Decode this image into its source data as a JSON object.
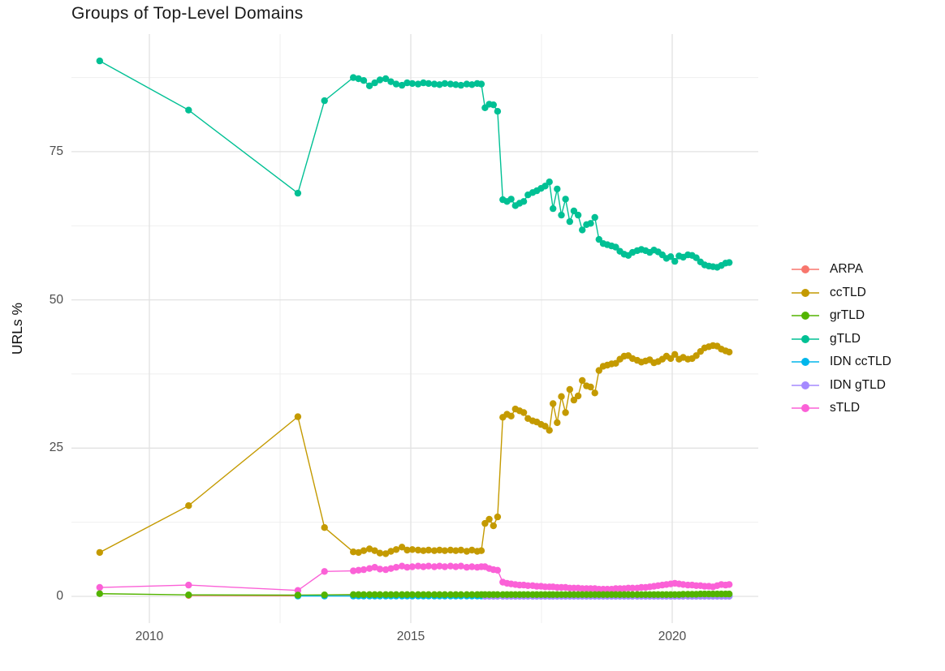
{
  "title": "Groups of Top-Level Domains",
  "y_axis": {
    "label": "URLs %",
    "tick_labels": [
      "0",
      "25",
      "50",
      "75"
    ],
    "tick_values": [
      0,
      25,
      50,
      75
    ]
  },
  "x_axis": {
    "tick_labels": [
      "2010",
      "2015",
      "2020"
    ],
    "tick_values": [
      2010,
      2015,
      2020
    ]
  },
  "legend": {
    "position": "right",
    "items": [
      {
        "label": "ARPA",
        "color": "#F8766D"
      },
      {
        "label": "ccTLD",
        "color": "#C49A00"
      },
      {
        "label": "grTLD",
        "color": "#53B400"
      },
      {
        "label": "gTLD",
        "color": "#00C094"
      },
      {
        "label": "IDN ccTLD",
        "color": "#00B6EB"
      },
      {
        "label": "IDN gTLD",
        "color": "#A58AFF"
      },
      {
        "label": "sTLD",
        "color": "#FB61D7"
      }
    ]
  },
  "chart_data": {
    "type": "line",
    "title": "Groups of Top-Level Domains",
    "xlabel": "",
    "ylabel": "URLs %",
    "xlim": [
      2008.5,
      2021.65
    ],
    "ylim": [
      -4.5,
      94.8
    ],
    "grid": true,
    "legend_position": "right",
    "x_major": [
      2010,
      2015,
      2020
    ],
    "x_minor": [
      2012.5,
      2017.5
    ],
    "y_major": [
      0,
      25,
      50,
      75
    ],
    "y_minor": [
      12.5,
      37.5,
      62.5,
      87.5
    ],
    "x": [
      2009.05,
      2010.75,
      2012.84,
      2013.35,
      2013.9,
      2014.0,
      2014.1,
      2014.21,
      2014.31,
      2014.41,
      2014.52,
      2014.62,
      2014.72,
      2014.83,
      2014.93,
      2015.03,
      2015.14,
      2015.24,
      2015.34,
      2015.45,
      2015.55,
      2015.65,
      2015.76,
      2015.86,
      2015.96,
      2016.07,
      2016.17,
      2016.27,
      2016.35,
      2016.42,
      2016.5,
      2016.58,
      2016.66,
      2016.76,
      2016.84,
      2016.92,
      2017.0,
      2017.08,
      2017.16,
      2017.24,
      2017.33,
      2017.41,
      2017.49,
      2017.57,
      2017.65,
      2017.72,
      2017.8,
      2017.88,
      2017.96,
      2018.04,
      2018.12,
      2018.2,
      2018.28,
      2018.36,
      2018.44,
      2018.52,
      2018.6,
      2018.68,
      2018.76,
      2018.84,
      2018.92,
      2019.0,
      2019.08,
      2019.16,
      2019.24,
      2019.33,
      2019.41,
      2019.49,
      2019.57,
      2019.65,
      2019.73,
      2019.81,
      2019.89,
      2019.97,
      2020.05,
      2020.13,
      2020.21,
      2020.3,
      2020.38,
      2020.46,
      2020.54,
      2020.62,
      2020.7,
      2020.78,
      2020.86,
      2020.94,
      2021.02,
      2021.09
    ],
    "series": [
      {
        "name": "ARPA",
        "color": "#F8766D",
        "values": [
          null,
          0.15,
          0.1,
          0.1,
          0.1,
          null,
          null,
          null,
          null,
          null,
          null,
          null,
          null,
          null,
          null,
          null,
          null,
          null,
          null,
          null,
          null,
          null,
          null,
          null,
          null,
          null,
          null,
          null,
          null,
          null,
          null,
          null,
          null,
          null,
          null,
          null,
          null,
          null,
          null,
          null,
          null,
          null,
          null,
          null,
          null,
          null,
          null,
          null,
          null,
          null,
          null,
          null,
          null,
          null,
          null,
          null,
          null,
          null,
          null,
          null,
          null,
          null,
          null,
          null,
          null,
          null,
          null,
          null,
          null,
          null,
          null,
          null,
          null,
          null,
          null,
          null,
          null,
          null,
          null,
          null,
          null,
          null,
          null,
          null,
          null,
          null,
          null,
          null
        ]
      },
      {
        "name": "ccTLD",
        "color": "#C49A00",
        "values": [
          7.4,
          15.3,
          30.3,
          11.6,
          7.5,
          7.4,
          7.7,
          8.0,
          7.7,
          7.3,
          7.2,
          7.6,
          7.9,
          8.3,
          7.8,
          7.9,
          7.8,
          7.7,
          7.8,
          7.7,
          7.8,
          7.7,
          7.8,
          7.7,
          7.8,
          7.6,
          7.8,
          7.6,
          7.7,
          12.3,
          13.0,
          11.9,
          13.4,
          30.2,
          30.7,
          30.4,
          31.6,
          31.3,
          31.0,
          30.0,
          29.6,
          29.4,
          29.0,
          28.7,
          28.0,
          32.5,
          29.3,
          33.7,
          31.0,
          34.9,
          33.1,
          33.8,
          36.4,
          35.5,
          35.3,
          34.3,
          38.1,
          38.8,
          39.0,
          39.2,
          39.3,
          40.0,
          40.5,
          40.6,
          40.1,
          39.8,
          39.5,
          39.7,
          39.9,
          39.4,
          39.6,
          40.0,
          40.5,
          40.1,
          40.8,
          40.0,
          40.3,
          40.0,
          40.1,
          40.6,
          41.3,
          41.9,
          42.1,
          42.3,
          42.2,
          41.7,
          41.4,
          41.2
        ]
      },
      {
        "name": "grTLD",
        "color": "#53B400",
        "values": [
          0.45,
          0.25,
          0.2,
          0.25,
          0.3,
          0.3,
          0.3,
          0.3,
          0.3,
          0.3,
          0.3,
          0.3,
          0.3,
          0.3,
          0.3,
          0.3,
          0.3,
          0.3,
          0.3,
          0.3,
          0.3,
          0.3,
          0.3,
          0.3,
          0.3,
          0.3,
          0.3,
          0.3,
          0.3,
          0.3,
          0.3,
          0.3,
          0.3,
          0.3,
          0.3,
          0.3,
          0.3,
          0.3,
          0.3,
          0.3,
          0.3,
          0.3,
          0.3,
          0.3,
          0.3,
          0.3,
          0.3,
          0.3,
          0.3,
          0.3,
          0.3,
          0.3,
          0.3,
          0.3,
          0.3,
          0.3,
          0.3,
          0.3,
          0.3,
          0.3,
          0.3,
          0.3,
          0.3,
          0.3,
          0.3,
          0.3,
          0.3,
          0.3,
          0.3,
          0.3,
          0.3,
          0.3,
          0.3,
          0.3,
          0.3,
          0.3,
          0.35,
          0.35,
          0.35,
          0.35,
          0.4,
          0.4,
          0.4,
          0.4,
          0.4,
          0.4,
          0.4,
          0.4
        ]
      },
      {
        "name": "gTLD",
        "color": "#00C094",
        "values": [
          90.3,
          82.0,
          68.0,
          83.6,
          87.5,
          87.3,
          87.0,
          86.1,
          86.6,
          87.1,
          87.3,
          86.8,
          86.4,
          86.2,
          86.6,
          86.5,
          86.4,
          86.6,
          86.5,
          86.4,
          86.3,
          86.5,
          86.4,
          86.3,
          86.2,
          86.4,
          86.3,
          86.5,
          86.4,
          82.4,
          83.0,
          82.9,
          81.8,
          66.9,
          66.6,
          67.0,
          65.9,
          66.3,
          66.6,
          67.7,
          68.1,
          68.4,
          68.8,
          69.2,
          69.9,
          65.4,
          68.7,
          64.3,
          67.0,
          63.2,
          65.0,
          64.3,
          61.8,
          62.7,
          62.9,
          63.9,
          60.2,
          59.5,
          59.3,
          59.1,
          58.9,
          58.2,
          57.7,
          57.5,
          58.0,
          58.3,
          58.5,
          58.3,
          58.0,
          58.4,
          58.1,
          57.6,
          57.0,
          57.3,
          56.5,
          57.4,
          57.2,
          57.6,
          57.5,
          57.1,
          56.4,
          55.9,
          55.7,
          55.6,
          55.5,
          55.8,
          56.2,
          56.3
        ]
      },
      {
        "name": "IDN ccTLD",
        "color": "#00B6EB",
        "values": [
          null,
          null,
          0.05,
          0.05,
          0.05,
          0.05,
          0.05,
          0.05,
          0.05,
          0.05,
          0.05,
          0.05,
          0.05,
          0.05,
          0.05,
          0.05,
          0.05,
          0.05,
          0.05,
          0.05,
          0.05,
          0.05,
          0.05,
          0.05,
          0.05,
          0.05,
          0.05,
          0.05,
          0.05,
          0.05,
          0.05,
          0.05,
          0.05,
          0.05,
          0.05,
          0.05,
          0.05,
          0.05,
          0.05,
          0.05,
          0.05,
          0.05,
          0.05,
          0.05,
          0.05,
          0.05,
          0.05,
          0.05,
          0.05,
          0.05,
          0.05,
          0.05,
          0.05,
          0.05,
          0.05,
          0.05,
          0.05,
          0.05,
          0.05,
          0.05,
          0.05,
          0.05,
          0.05,
          0.05,
          0.05,
          0.05,
          0.05,
          0.05,
          0.05,
          0.05,
          0.05,
          0.05,
          0.05,
          0.05,
          0.05,
          0.05,
          0.05,
          0.05,
          0.05,
          0.05,
          0.05,
          0.05,
          0.05,
          0.05,
          0.05,
          0.05,
          0.05,
          0.05
        ]
      },
      {
        "name": "IDN gTLD",
        "color": "#A58AFF",
        "values": [
          null,
          null,
          null,
          null,
          null,
          null,
          null,
          null,
          null,
          null,
          null,
          null,
          null,
          null,
          null,
          null,
          null,
          null,
          null,
          null,
          null,
          null,
          null,
          null,
          null,
          null,
          null,
          null,
          null,
          0.02,
          0.02,
          0.02,
          0.02,
          0.02,
          0.02,
          0.02,
          0.02,
          0.02,
          0.02,
          0.02,
          0.02,
          0.02,
          0.02,
          0.02,
          0.02,
          0.02,
          0.02,
          0.02,
          0.02,
          0.02,
          0.02,
          0.02,
          0.02,
          0.02,
          0.02,
          0.02,
          0.02,
          0.02,
          0.02,
          0.02,
          0.02,
          0.02,
          0.02,
          0.02,
          0.02,
          0.02,
          0.02,
          0.02,
          0.02,
          0.02,
          0.02,
          0.02,
          0.02,
          0.02,
          0.02,
          0.02,
          0.02,
          0.02,
          0.02,
          0.02,
          0.02,
          0.02,
          0.02,
          0.02,
          0.02,
          0.02,
          0.02,
          0.02
        ]
      },
      {
        "name": "sTLD",
        "color": "#FB61D7",
        "values": [
          1.5,
          1.9,
          1.0,
          4.2,
          4.3,
          4.4,
          4.5,
          4.7,
          4.9,
          4.6,
          4.5,
          4.7,
          4.9,
          5.1,
          4.9,
          5.0,
          5.1,
          5.0,
          5.1,
          5.0,
          5.1,
          5.0,
          5.1,
          5.0,
          5.1,
          4.9,
          5.0,
          4.9,
          5.0,
          5.0,
          4.7,
          4.5,
          4.4,
          2.4,
          2.2,
          2.1,
          2.0,
          1.9,
          1.9,
          1.8,
          1.8,
          1.7,
          1.7,
          1.6,
          1.6,
          1.6,
          1.5,
          1.5,
          1.5,
          1.4,
          1.4,
          1.4,
          1.3,
          1.3,
          1.3,
          1.3,
          1.2,
          1.2,
          1.2,
          1.2,
          1.3,
          1.3,
          1.3,
          1.4,
          1.4,
          1.4,
          1.5,
          1.5,
          1.6,
          1.7,
          1.8,
          1.9,
          2.0,
          2.1,
          2.2,
          2.1,
          2.0,
          1.9,
          1.9,
          1.8,
          1.8,
          1.7,
          1.7,
          1.6,
          1.8,
          2.0,
          1.9,
          2.0
        ]
      }
    ]
  }
}
